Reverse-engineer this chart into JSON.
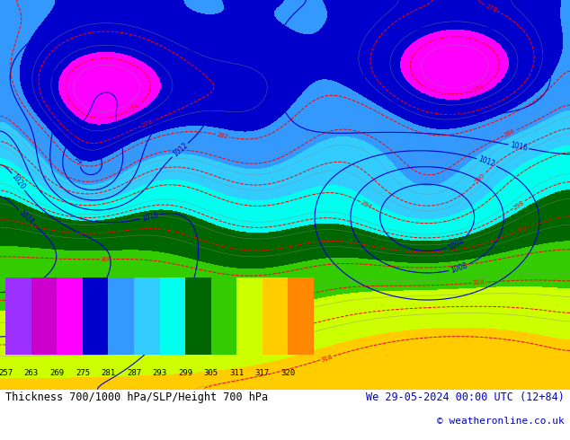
{
  "title_left": "Thickness 700/1000 hPa/SLP/Height 700 hPa",
  "title_right": "We 29-05-2024 00:00 UTC (12+84)",
  "copyright": "© weatheronline.co.uk",
  "colorbar_values": [
    257,
    263,
    269,
    275,
    281,
    287,
    293,
    299,
    305,
    311,
    317,
    320
  ],
  "colorbar_colors": [
    "#9B30FF",
    "#CC00CC",
    "#FF00FF",
    "#0000CC",
    "#3399FF",
    "#33CCFF",
    "#00FFEE",
    "#006600",
    "#33CC00",
    "#CCFF00",
    "#FFCC00",
    "#FF8800"
  ],
  "bg_color": "#FFFFFF",
  "figsize": [
    6.34,
    4.9
  ],
  "dpi": 100
}
